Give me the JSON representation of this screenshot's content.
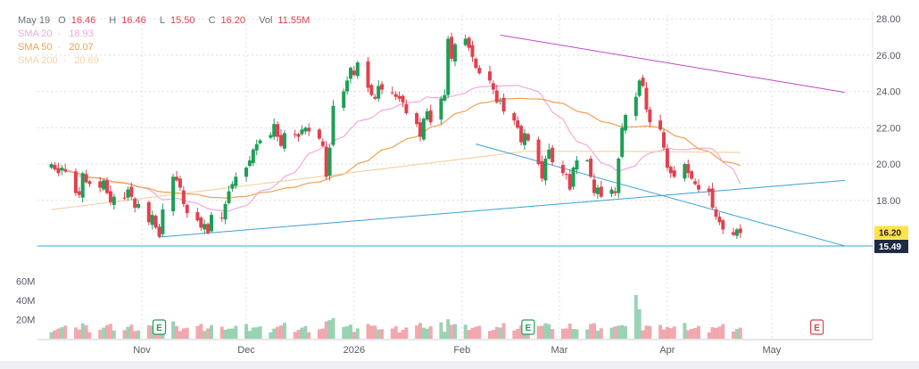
{
  "ohlc_legend": {
    "date": "May 19",
    "open_label": "O",
    "open": "16.46",
    "high_label": "H",
    "high": "16.46",
    "low_label": "L",
    "low": "15.50",
    "close_label": "C",
    "close": "16.20",
    "vol_label": "Vol",
    "vol": "11.55M"
  },
  "sma_legend": [
    {
      "label": "SMA 20",
      "sep": "·",
      "value": "18.93",
      "color": "#f2a8d8"
    },
    {
      "label": "SMA 50",
      "sep": "·",
      "value": "20.07",
      "color": "#f0a050"
    },
    {
      "label": "SMA 200",
      "sep": "·",
      "value": "20.69",
      "color": "#f3d3a6"
    }
  ],
  "colors": {
    "up": "#1e9e57",
    "down": "#e0414e",
    "trendline_blue": "#3aa0d8",
    "trendline_purple": "#c445c9",
    "earnings": "#1e9e57",
    "earnings_red": "#e0414e"
  },
  "price_labels": {
    "last": "16.20",
    "level": "15.49"
  },
  "chart_data": {
    "type": "candlestick",
    "y_axis": {
      "ticks": [
        "28.00",
        "26.00",
        "24.00",
        "22.00",
        "20.00",
        "18.00"
      ],
      "range": [
        14.8,
        28.2
      ]
    },
    "x_axis": {
      "ticks": [
        {
          "label": "Nov",
          "day": 10
        },
        {
          "label": "Dec",
          "day": 40
        },
        {
          "label": "2026",
          "day": 71
        },
        {
          "label": "Feb",
          "day": 102
        },
        {
          "label": "Mar",
          "day": 130
        },
        {
          "label": "Apr",
          "day": 161
        },
        {
          "label": "May",
          "day": 191
        }
      ],
      "range": [
        -20,
        220
      ]
    },
    "volume_axis": {
      "ticks": [
        "60M",
        "40M",
        "20M"
      ],
      "max": 65
    },
    "earnings_markers": [
      {
        "label": "E",
        "day": 15,
        "color": "green"
      },
      {
        "label": "E",
        "day": 121,
        "color": "green"
      },
      {
        "label": "E",
        "day": 204,
        "color": "red"
      }
    ],
    "trendlines": [
      {
        "name": "support",
        "from": [
          15,
          15.98
        ],
        "to": [
          212,
          19.1
        ],
        "color": "blue"
      },
      {
        "name": "falling",
        "from": [
          106,
          21.1
        ],
        "to": [
          212,
          15.49
        ],
        "color": "blue"
      },
      {
        "name": "resistance",
        "from": [
          113,
          27.1
        ],
        "to": [
          212,
          23.95
        ],
        "color": "purple"
      },
      {
        "name": "level",
        "from": [
          -20,
          15.49
        ],
        "to": [
          220,
          15.49
        ],
        "color": "blue"
      }
    ],
    "closes": [
      [
        -16,
        20.0
      ],
      [
        -15,
        19.7
      ],
      [
        -14,
        19.5
      ],
      [
        -13,
        19.8
      ],
      [
        -12,
        19.6
      ],
      [
        -9,
        18.4
      ],
      [
        -8,
        18.3
      ],
      [
        -7,
        19.5
      ],
      [
        -6,
        19.0
      ],
      [
        -5,
        18.9
      ],
      [
        -2,
        18.7
      ],
      [
        -1,
        19.1
      ],
      [
        0,
        18.4
      ],
      [
        1,
        17.9
      ],
      [
        2,
        18.2
      ],
      [
        5,
        18.1
      ],
      [
        6,
        18.6
      ],
      [
        7,
        18.2
      ],
      [
        8,
        17.6
      ],
      [
        9,
        17.8
      ],
      [
        12,
        16.8
      ],
      [
        13,
        17.2
      ],
      [
        14,
        16.5
      ],
      [
        15,
        16.0
      ],
      [
        16,
        17.5
      ],
      [
        19,
        19.3
      ],
      [
        20,
        19.1
      ],
      [
        21,
        18.7
      ],
      [
        22,
        17.8
      ],
      [
        23,
        17.3
      ],
      [
        26,
        16.9
      ],
      [
        27,
        16.5
      ],
      [
        28,
        16.7
      ],
      [
        29,
        16.2
      ],
      [
        30,
        17.2
      ],
      [
        33,
        17.0
      ],
      [
        34,
        17.8
      ],
      [
        35,
        18.5
      ],
      [
        36,
        18.9
      ],
      [
        37,
        19.3
      ],
      [
        40,
        19.8
      ],
      [
        41,
        20.2
      ],
      [
        42,
        20.8
      ],
      [
        43,
        21.1
      ],
      [
        44,
        21.3
      ],
      [
        47,
        21.6
      ],
      [
        48,
        22.2
      ],
      [
        49,
        21.5
      ],
      [
        50,
        21.0
      ],
      [
        51,
        21.7
      ],
      [
        54,
        21.6
      ],
      [
        55,
        21.5
      ],
      [
        56,
        21.9
      ],
      [
        57,
        22.0
      ],
      [
        58,
        21.8
      ],
      [
        61,
        21.4
      ],
      [
        62,
        21.0
      ],
      [
        63,
        19.3
      ],
      [
        64,
        20.9
      ],
      [
        65,
        23.2
      ],
      [
        68,
        24.0
      ],
      [
        69,
        24.6
      ],
      [
        70,
        25.3
      ],
      [
        71,
        24.9
      ],
      [
        72,
        25.6
      ],
      [
        75,
        24.2
      ],
      [
        76,
        23.8
      ],
      [
        77,
        23.6
      ],
      [
        78,
        24.3
      ],
      [
        79,
        24.1
      ],
      [
        82,
        23.9
      ],
      [
        83,
        23.7
      ],
      [
        84,
        23.6
      ],
      [
        85,
        23.4
      ],
      [
        86,
        22.8
      ],
      [
        89,
        22.2
      ],
      [
        90,
        21.5
      ],
      [
        91,
        22.5
      ],
      [
        92,
        22.9
      ],
      [
        93,
        22.3
      ],
      [
        96,
        23.6
      ],
      [
        97,
        23.8
      ],
      [
        98,
        26.9
      ],
      [
        99,
        25.8
      ],
      [
        100,
        26.6
      ],
      [
        103,
        26.9
      ],
      [
        104,
        26.4
      ],
      [
        105,
        25.9
      ],
      [
        106,
        25.3
      ],
      [
        107,
        25.0
      ],
      [
        110,
        24.6
      ],
      [
        111,
        24.1
      ],
      [
        112,
        23.4
      ],
      [
        113,
        23.5
      ],
      [
        114,
        22.9
      ],
      [
        117,
        22.4
      ],
      [
        118,
        22.0
      ],
      [
        119,
        21.2
      ],
      [
        120,
        21.7
      ],
      [
        121,
        21.3
      ],
      [
        124,
        20.0
      ],
      [
        125,
        19.2
      ],
      [
        126,
        20.3
      ],
      [
        127,
        20.8
      ],
      [
        128,
        20.1
      ],
      [
        131,
        19.5
      ],
      [
        132,
        19.4
      ],
      [
        133,
        18.6
      ],
      [
        134,
        19.8
      ],
      [
        135,
        20.2
      ],
      [
        138,
        20.2
      ],
      [
        139,
        19.3
      ],
      [
        140,
        18.4
      ],
      [
        141,
        18.7
      ],
      [
        142,
        18.2
      ],
      [
        145,
        18.6
      ],
      [
        146,
        18.4
      ],
      [
        147,
        20.3
      ],
      [
        148,
        22.0
      ],
      [
        149,
        22.7
      ],
      [
        152,
        23.7
      ],
      [
        153,
        24.6
      ],
      [
        154,
        24.3
      ],
      [
        155,
        23.0
      ],
      [
        156,
        22.3
      ],
      [
        159,
        21.9
      ],
      [
        160,
        20.9
      ],
      [
        161,
        19.8
      ],
      [
        162,
        19.5
      ],
      [
        163,
        19.3
      ],
      [
        166,
        20.0
      ],
      [
        167,
        19.5
      ],
      [
        168,
        19.2
      ],
      [
        169,
        18.9
      ],
      [
        170,
        18.6
      ],
      [
        173,
        18.5
      ],
      [
        174,
        17.6
      ],
      [
        175,
        17.1
      ],
      [
        176,
        16.8
      ],
      [
        177,
        16.4
      ],
      [
        180,
        16.1
      ],
      [
        181,
        16.4
      ],
      [
        182,
        16.2
      ]
    ]
  }
}
